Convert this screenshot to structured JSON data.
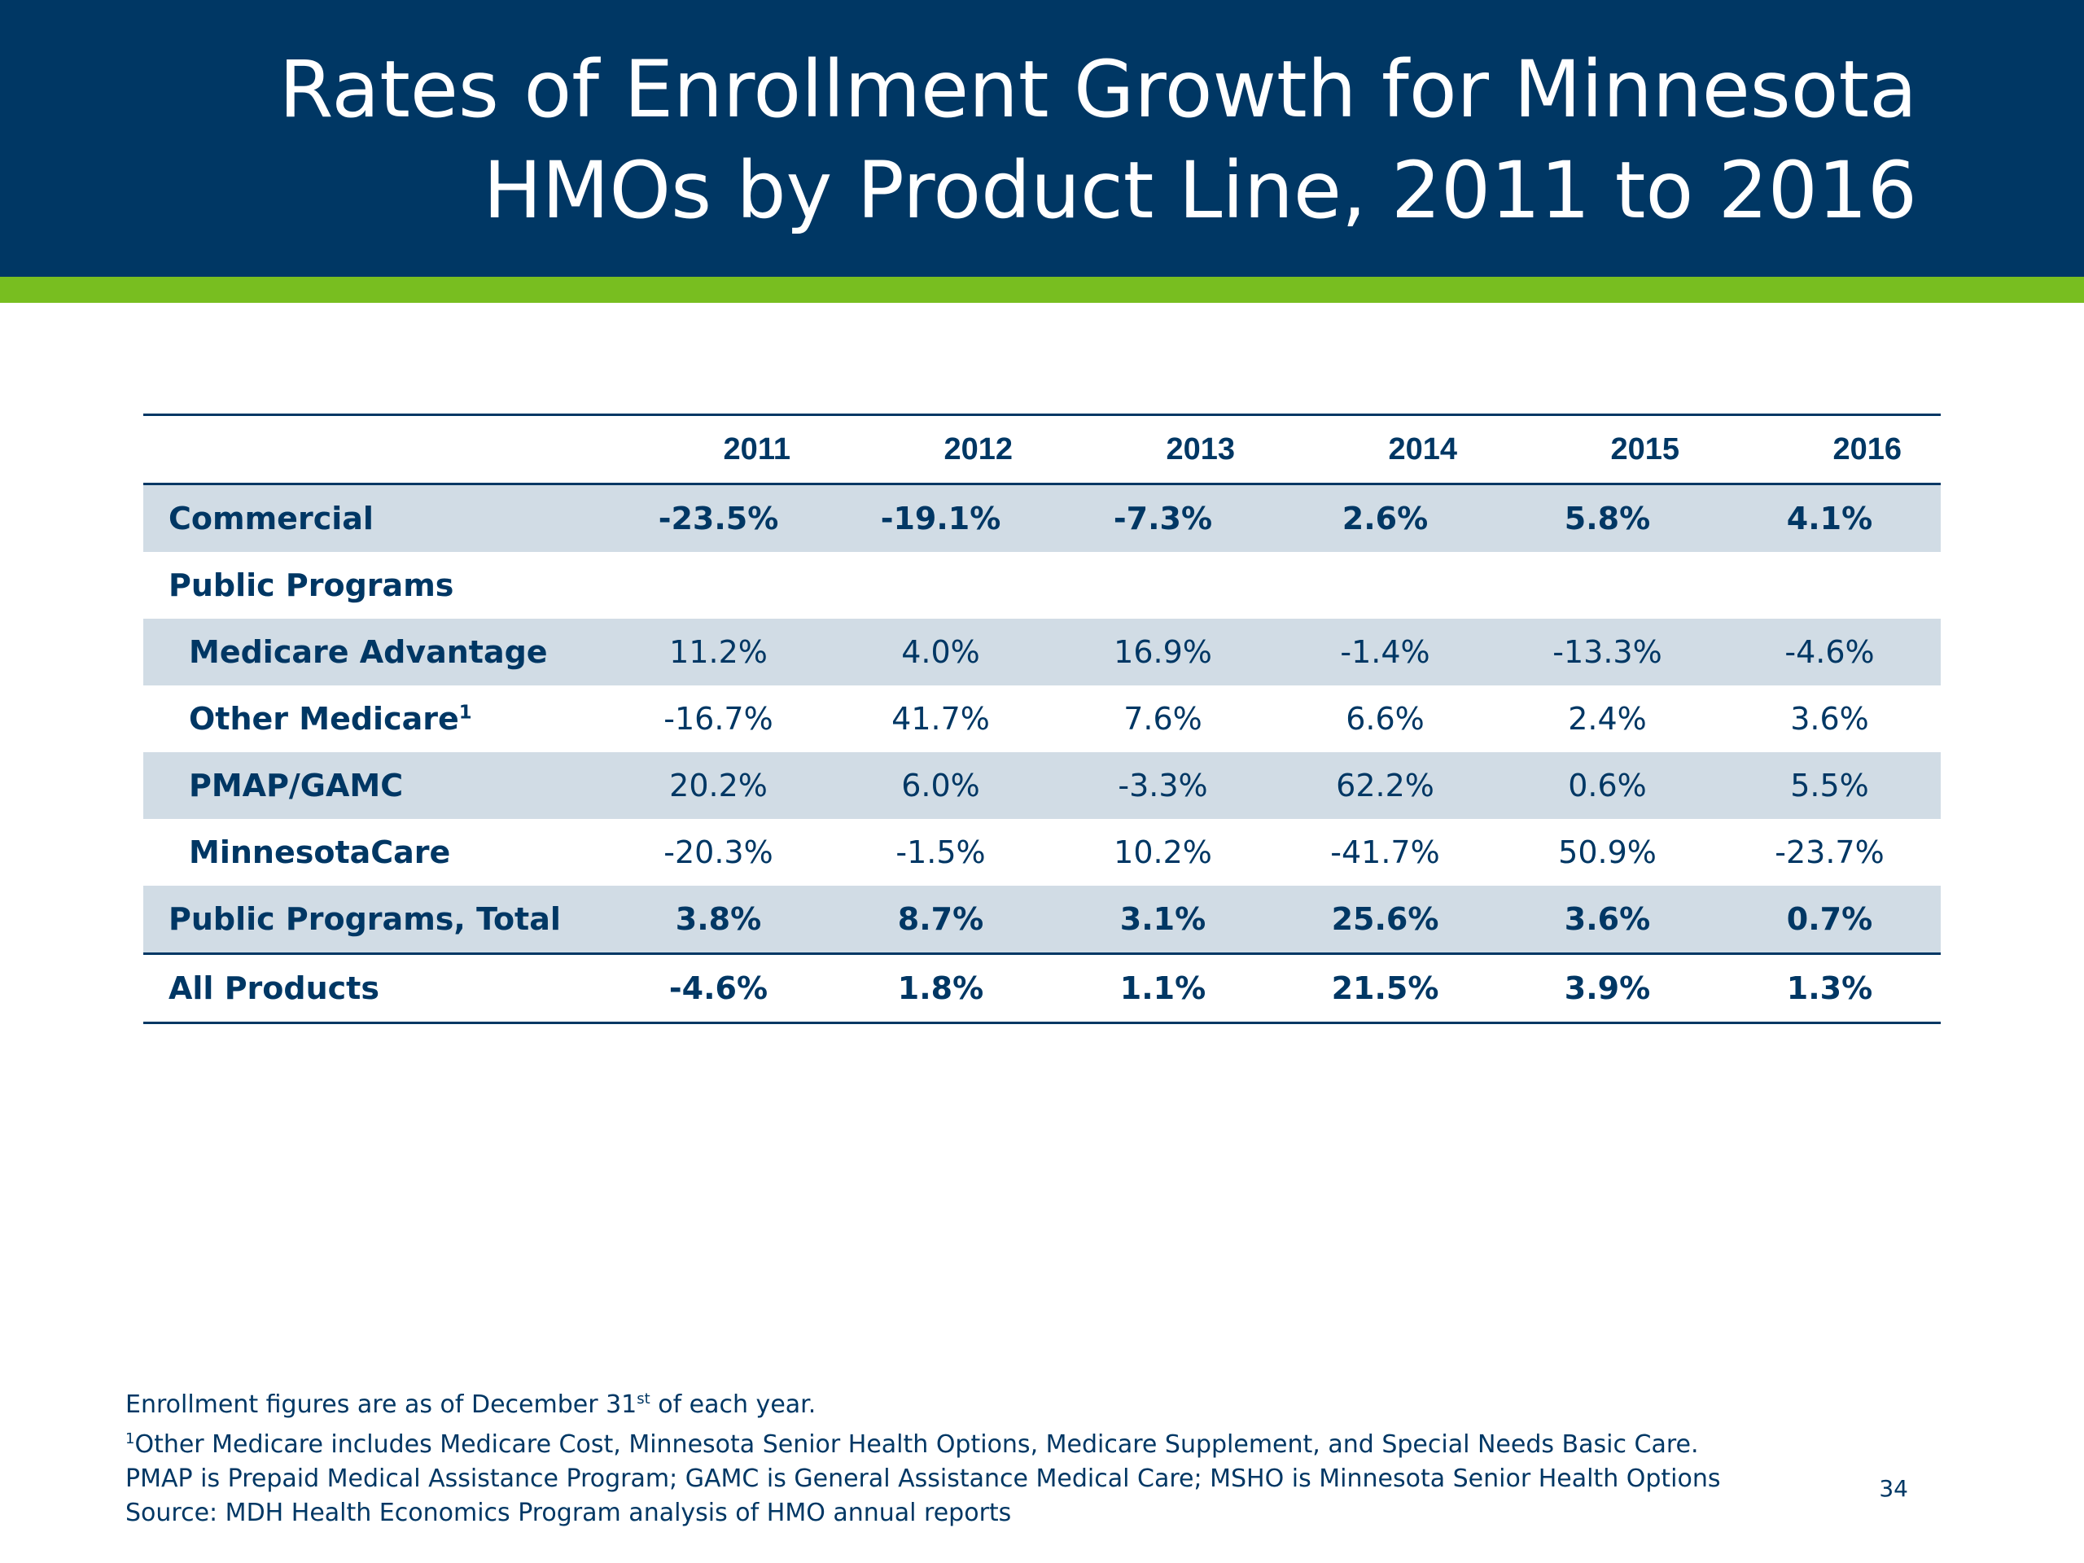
{
  "title": {
    "line1": "Rates of Enrollment Growth for Minnesota",
    "line2": "HMOs by Product Line, 2011 to 2016"
  },
  "table": {
    "years": [
      "2011",
      "2012",
      "2013",
      "2014",
      "2015",
      "2016"
    ],
    "rows": [
      {
        "label": "Commercial",
        "values": [
          "-23.5%",
          "-19.1%",
          "-7.3%",
          "2.6%",
          "5.8%",
          "4.1%"
        ]
      },
      {
        "label": "Public Programs",
        "values": []
      },
      {
        "label": "Medicare Advantage",
        "values": [
          "11.2%",
          "4.0%",
          "16.9%",
          "-1.4%",
          "-13.3%",
          "-4.6%"
        ]
      },
      {
        "label": "Other Medicare",
        "sup": "1",
        "values": [
          "-16.7%",
          "41.7%",
          "7.6%",
          "6.6%",
          "2.4%",
          "3.6%"
        ]
      },
      {
        "label": "PMAP/GAMC",
        "values": [
          "20.2%",
          "6.0%",
          "-3.3%",
          "62.2%",
          "0.6%",
          "5.5%"
        ]
      },
      {
        "label": "MinnesotaCare",
        "values": [
          "-20.3%",
          "-1.5%",
          "10.2%",
          "-41.7%",
          "50.9%",
          "-23.7%"
        ]
      },
      {
        "label": "Public Programs, Total",
        "values": [
          "3.8%",
          "8.7%",
          "3.1%",
          "25.6%",
          "3.6%",
          "0.7%"
        ]
      },
      {
        "label": "All Products",
        "values": [
          "-4.6%",
          "1.8%",
          "1.1%",
          "21.5%",
          "3.9%",
          "1.3%"
        ]
      }
    ]
  },
  "notes": {
    "line1_pre": "Enrollment figures are as of December 31",
    "line1_sup": "st",
    "line1_post": " of each year.",
    "line2_sup": "1",
    "line2": "Other Medicare includes Medicare Cost, Minnesota Senior Health Options, Medicare Supplement, and Special Needs Basic Care.",
    "line3": "PMAP is Prepaid Medical Assistance Program; GAMC is General Assistance Medical Care; MSHO is Minnesota Senior Health Options",
    "line4": "Source: MDH Health Economics Program analysis of HMO annual reports"
  },
  "page_number": "34"
}
